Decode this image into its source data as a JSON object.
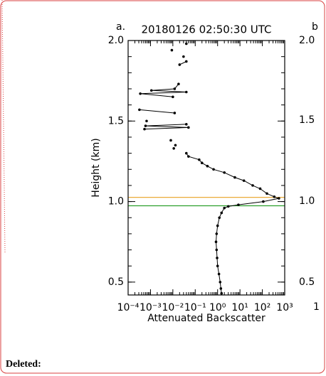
{
  "chart_data": {
    "type": "line",
    "panel_label": "a.",
    "title": "20180126 02:50:30 UTC",
    "xlabel": "Attenuated Backscatter",
    "ylabel": "Height (km)",
    "xscale": "log",
    "xlim": [
      0.0001,
      1000
    ],
    "xticks": [
      {
        "value": 0.0001,
        "label": "10⁻⁴"
      },
      {
        "value": 0.001,
        "label": "10⁻³"
      },
      {
        "value": 0.01,
        "label": "10⁻²"
      },
      {
        "value": 0.1,
        "label": "10⁻¹"
      },
      {
        "value": 1,
        "label": "10⁰"
      },
      {
        "value": 10,
        "label": "10¹"
      },
      {
        "value": 100,
        "label": "10²"
      },
      {
        "value": 1000,
        "label": "10³"
      }
    ],
    "ylim": [
      0.42,
      2.0
    ],
    "yticks": [
      0.5,
      {
        "value": 1,
        "label": "1.0"
      },
      1.5,
      {
        "value": 2,
        "label": "2.0"
      }
    ],
    "hlines": [
      {
        "value": 1.026,
        "color": "#e8a020"
      },
      {
        "value": 0.974,
        "color": "#2ca02c"
      }
    ],
    "series": [
      {
        "color": "#000000",
        "x": [
          1.5,
          1.4,
          1.3,
          1.15,
          1.0,
          0.95,
          0.9,
          0.85,
          0.9,
          1.0,
          1.2,
          1.5,
          2.0,
          3.0,
          8.5,
          110,
          550,
          340,
          160,
          80,
          37,
          15,
          5.9,
          2,
          0.66,
          0.35,
          0.2,
          0.15,
          0.05,
          0.04,
          null,
          0.011,
          null,
          0.013,
          null,
          0.0081,
          null,
          0.00054,
          0.05,
          0.0006,
          0.04,
          null,
          0.00067,
          null,
          0.00032,
          0.012,
          null,
          0.01,
          0.00035,
          0.04,
          0.0011,
          0.012,
          0.018,
          null,
          0.02,
          0.04,
          null,
          0.03,
          null,
          0.009,
          null,
          0.04
        ],
        "y": [
          0.43,
          0.46,
          0.5,
          0.55,
          0.6,
          0.65,
          0.7,
          0.75,
          0.8,
          0.85,
          0.9,
          0.93,
          0.96,
          0.97,
          0.98,
          1.0,
          1.02,
          1.03,
          1.05,
          1.08,
          1.1,
          1.13,
          1.15,
          1.18,
          1.2,
          1.22,
          1.24,
          1.26,
          1.28,
          1.3,
          null,
          1.33,
          null,
          1.35,
          null,
          1.38,
          null,
          1.45,
          1.46,
          1.47,
          1.48,
          null,
          1.5,
          null,
          1.57,
          1.55,
          null,
          1.65,
          1.67,
          1.68,
          1.69,
          1.7,
          1.73,
          null,
          1.85,
          1.87,
          null,
          1.9,
          null,
          1.94,
          null,
          1.98
        ]
      }
    ]
  },
  "right_panel": {
    "label": "b",
    "ytick_labels": [
      "2.0",
      "1.5",
      "1.0",
      "0.5"
    ],
    "xtick_fragment": "1"
  },
  "footer": {
    "text": "Deleted:"
  }
}
